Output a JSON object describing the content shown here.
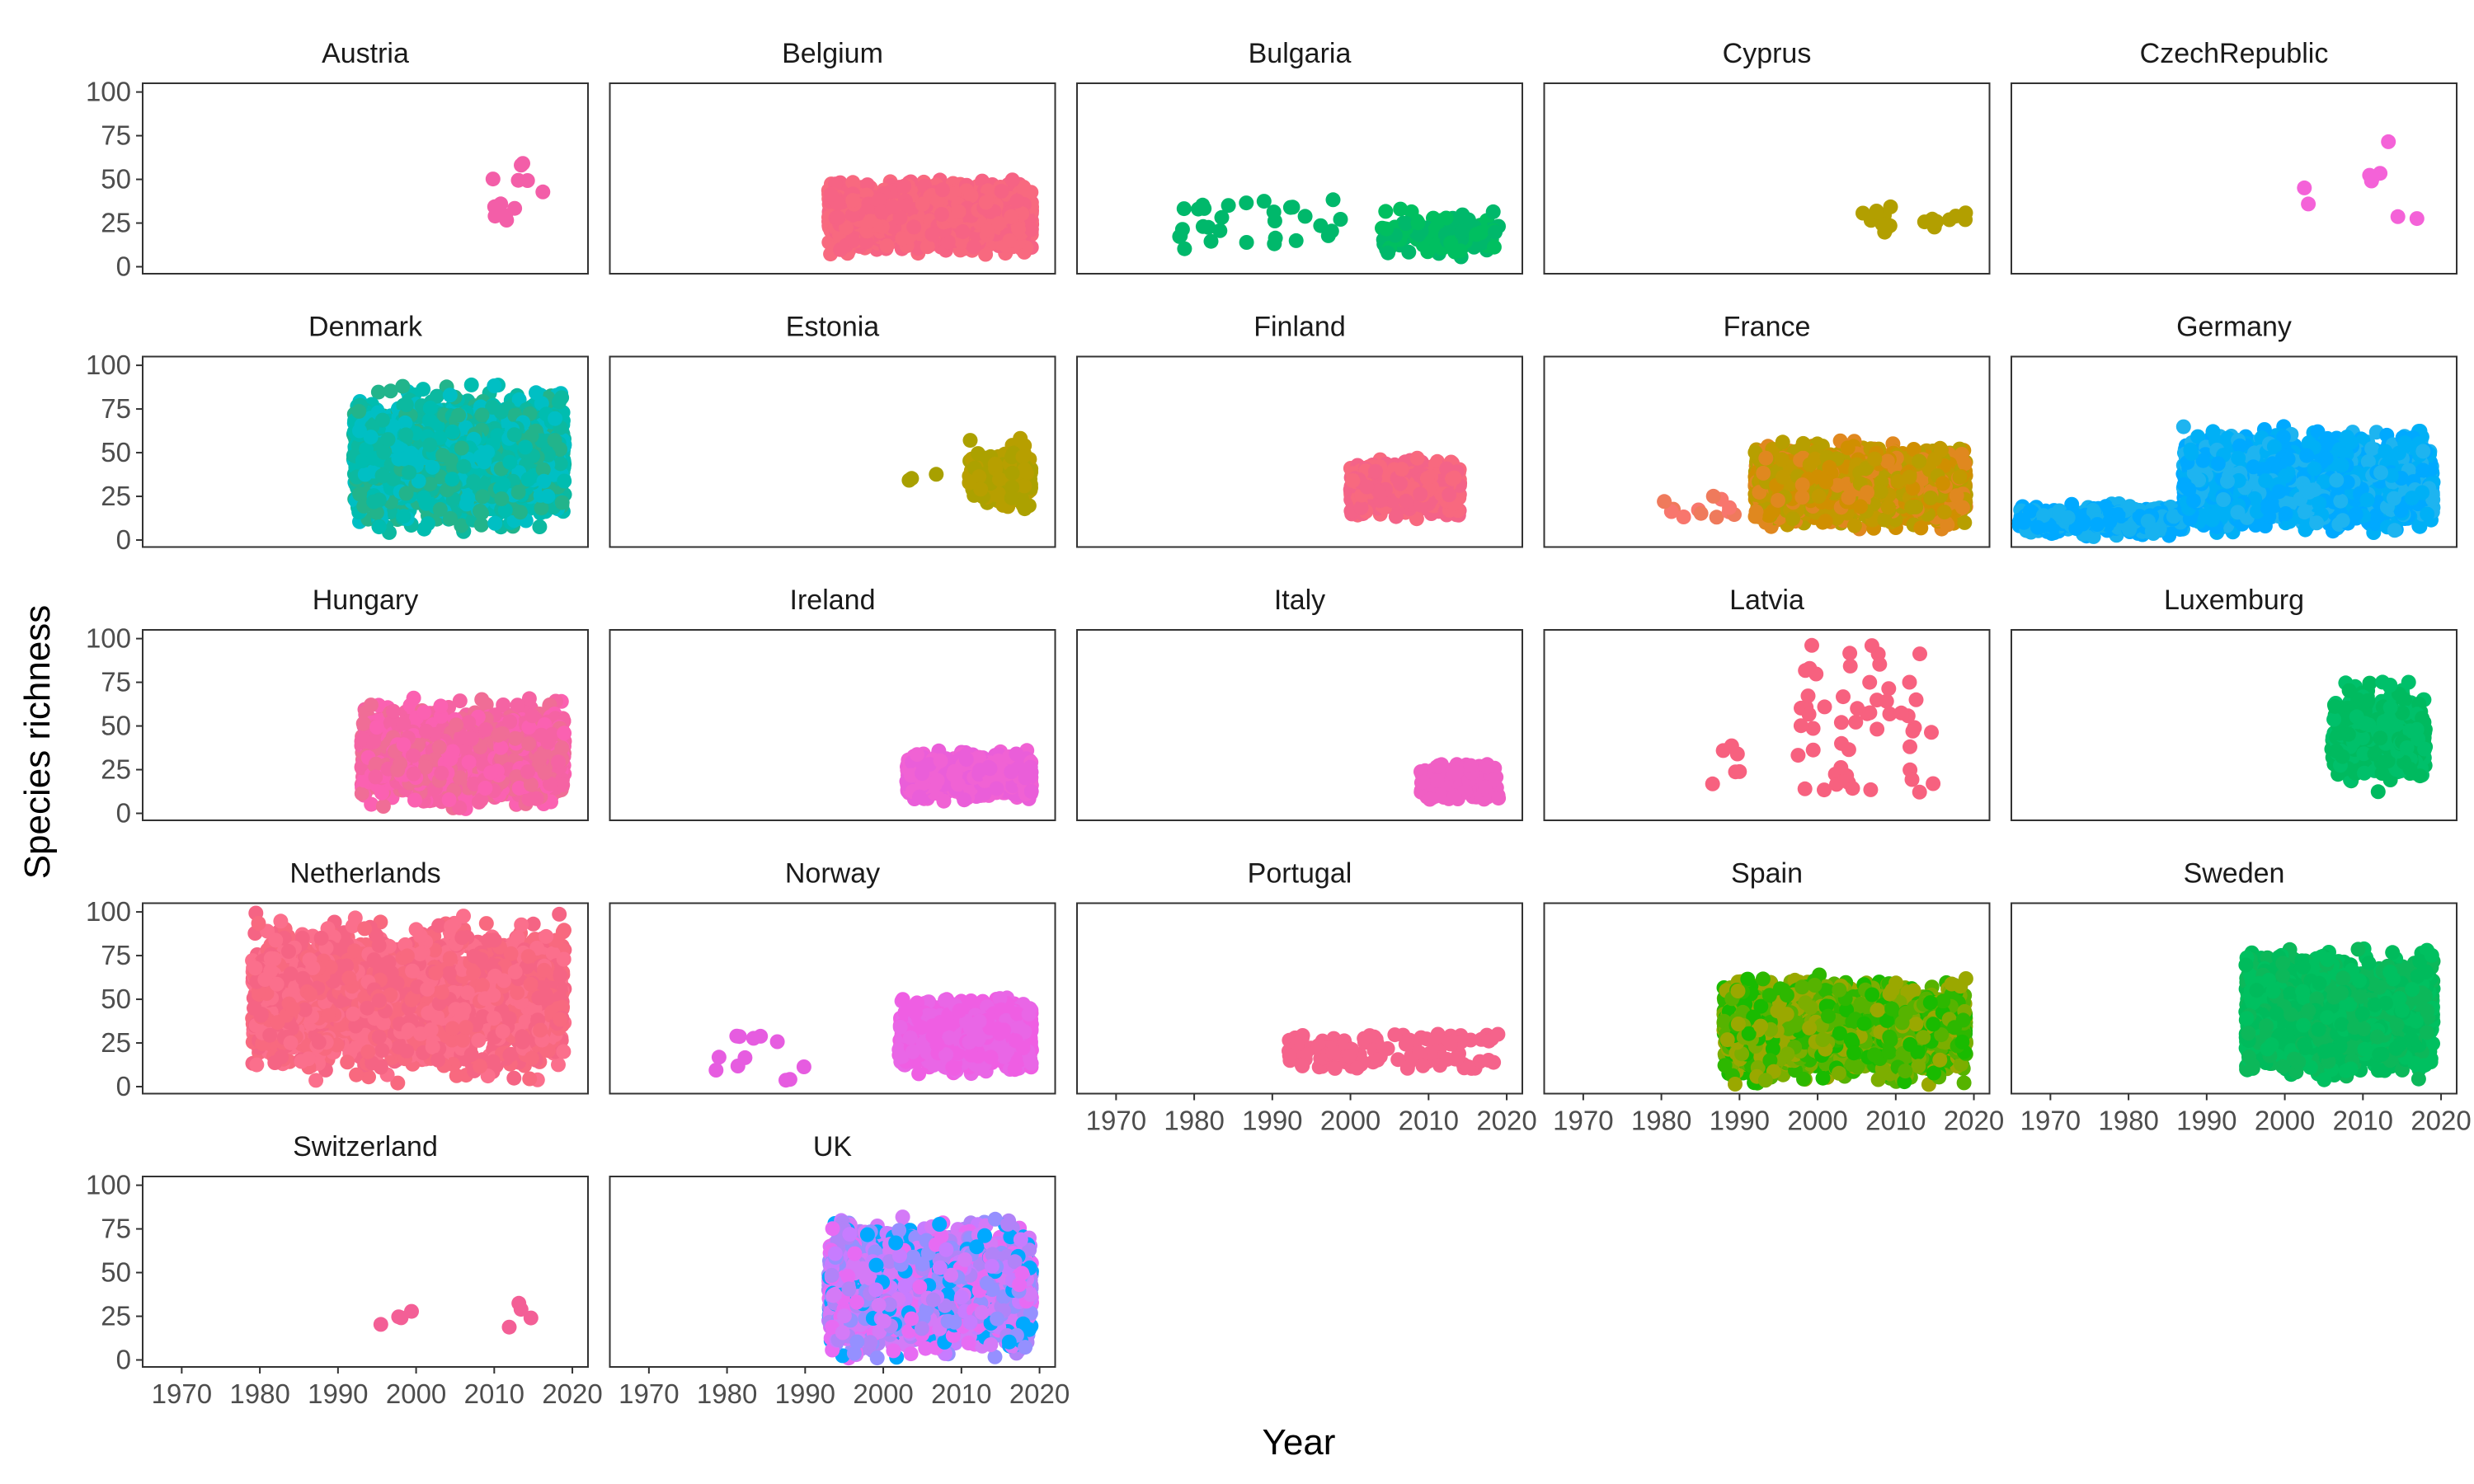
{
  "chart_data": {
    "type": "scatter",
    "xlabel": "Year",
    "ylabel": "Species richness",
    "xlim": [
      1965,
      2022
    ],
    "ylim": [
      -4,
      105
    ],
    "x_ticks": [
      "1970",
      "1980",
      "1990",
      "2000",
      "2010",
      "2020"
    ],
    "y_ticks": [
      "0",
      "25",
      "50",
      "75",
      "100"
    ],
    "grid": false,
    "panels": [
      {
        "name": "Austria",
        "clusters": [
          {
            "x": [
              2008.5,
              2017.5
            ],
            "y": [
              25,
              60
            ],
            "n": 12,
            "colors": [
              "#f35ea8"
            ]
          }
        ]
      },
      {
        "name": "Belgium",
        "clusters": [
          {
            "x": [
              1993,
              2019
            ],
            "y": [
              7,
              50
            ],
            "n": 2400,
            "colors": [
              "#f8697f",
              "#f66384"
            ]
          }
        ]
      },
      {
        "name": "Bulgaria",
        "clusters": [
          {
            "x": [
              1978,
              1999
            ],
            "y": [
              10,
              40
            ],
            "n": 30,
            "colors": [
              "#00b86b"
            ]
          },
          {
            "x": [
              2004,
              2019
            ],
            "y": [
              3,
              34
            ],
            "n": 160,
            "colors": [
              "#00b86b",
              "#00bf60"
            ]
          }
        ]
      },
      {
        "name": "Cyprus",
        "clusters": [
          {
            "x": [
              2005,
              2011
            ],
            "y": [
              18,
              37
            ],
            "n": 10,
            "colors": [
              "#b29f00"
            ]
          },
          {
            "x": [
              2013,
              2019
            ],
            "y": [
              19,
              31
            ],
            "n": 8,
            "colors": [
              "#b29f00"
            ]
          }
        ]
      },
      {
        "name": "CzechRepublic",
        "clusters": [
          {
            "x": [
              2002,
              2017
            ],
            "y": [
              27,
              76
            ],
            "n": 9,
            "colors": [
              "#f462d8"
            ]
          }
        ]
      },
      {
        "name": "Denmark",
        "clusters": [
          {
            "x": [
              1992,
              2019
            ],
            "y": [
              3,
              89
            ],
            "n": 2600,
            "colors": [
              "#00bfc4",
              "#00bdb0",
              "#0cb9a0",
              "#22b48b"
            ]
          }
        ]
      },
      {
        "name": "Estonia",
        "clusters": [
          {
            "x": [
              2003,
              2007
            ],
            "y": [
              30,
              38
            ],
            "n": 3,
            "colors": [
              "#a8a000"
            ]
          },
          {
            "x": [
              2011,
              2019
            ],
            "y": [
              14,
              60
            ],
            "n": 170,
            "colors": [
              "#aca100",
              "#b79f00"
            ]
          }
        ]
      },
      {
        "name": "Finland",
        "clusters": [
          {
            "x": [
              2000,
              2014
            ],
            "y": [
              12,
              48
            ],
            "n": 700,
            "colors": [
              "#f8697f",
              "#f46388"
            ]
          }
        ]
      },
      {
        "name": "France",
        "clusters": [
          {
            "x": [
              1979,
              1991
            ],
            "y": [
              13,
              26
            ],
            "n": 12,
            "colors": [
              "#f8766d",
              "#ef7a5c"
            ]
          },
          {
            "x": [
              1992,
              2019
            ],
            "y": [
              5,
              57
            ],
            "n": 2600,
            "colors": [
              "#d08f00",
              "#b79f00",
              "#e0881f",
              "#c29a00"
            ]
          }
        ]
      },
      {
        "name": "Germany",
        "clusters": [
          {
            "x": [
              1966,
              1987
            ],
            "y": [
              1,
              22
            ],
            "n": 500,
            "colors": [
              "#00a9ff",
              "#17b2f0"
            ]
          },
          {
            "x": [
              1987,
              2019
            ],
            "y": [
              2,
              65
            ],
            "n": 2200,
            "colors": [
              "#00a9ff",
              "#1eb4f0",
              "#00b0f6"
            ]
          }
        ]
      },
      {
        "name": "Hungary",
        "clusters": [
          {
            "x": [
              1993,
              2019
            ],
            "y": [
              2,
              66
            ],
            "n": 2200,
            "colors": [
              "#f563a3",
              "#fb61b1",
              "#f06d96"
            ]
          }
        ]
      },
      {
        "name": "Ireland",
        "clusters": [
          {
            "x": [
              2003,
              2019
            ],
            "y": [
              5,
              38
            ],
            "n": 900,
            "colors": [
              "#ea5ed9",
              "#f062d4"
            ]
          }
        ]
      },
      {
        "name": "Italy",
        "clusters": [
          {
            "x": [
              2009,
              2019
            ],
            "y": [
              8,
              28
            ],
            "n": 140,
            "colors": [
              "#f05fc4"
            ]
          }
        ]
      },
      {
        "name": "Latvia",
        "clusters": [
          {
            "x": [
              1986,
              1990
            ],
            "y": [
              13,
              41
            ],
            "n": 6,
            "colors": [
              "#f7617f"
            ]
          },
          {
            "x": [
              1997,
              2015
            ],
            "y": [
              12,
              98
            ],
            "n": 55,
            "colors": [
              "#f7617f"
            ]
          }
        ]
      },
      {
        "name": "Luxemburg",
        "clusters": [
          {
            "x": [
              2006,
              2018
            ],
            "y": [
              12,
              80
            ],
            "n": 420,
            "colors": [
              "#00ba5f",
              "#00c06a"
            ]
          }
        ]
      },
      {
        "name": "Netherlands",
        "clusters": [
          {
            "x": [
              1979,
              2019
            ],
            "y": [
              2,
              100
            ],
            "n": 2600,
            "colors": [
              "#f8697f",
              "#f56484",
              "#fb6f8c"
            ]
          }
        ]
      },
      {
        "name": "Norway",
        "clusters": [
          {
            "x": [
              1978,
              1990
            ],
            "y": [
              2,
              29
            ],
            "n": 12,
            "colors": [
              "#e65ce0"
            ]
          },
          {
            "x": [
              2002,
              2019
            ],
            "y": [
              7,
              52
            ],
            "n": 1400,
            "colors": [
              "#ef5ee3",
              "#e966e6"
            ]
          }
        ]
      },
      {
        "name": "Portugal",
        "clusters": [
          {
            "x": [
              1992,
              2019
            ],
            "y": [
              10,
              30
            ],
            "n": 110,
            "colors": [
              "#f5638b"
            ]
          }
        ]
      },
      {
        "name": "Spain",
        "clusters": [
          {
            "x": [
              1988,
              2019
            ],
            "y": [
              1,
              64
            ],
            "n": 3000,
            "colors": [
              "#7cae00",
              "#56b300",
              "#2db800",
              "#9aa800",
              "#19bb00"
            ]
          }
        ]
      },
      {
        "name": "Sweden",
        "clusters": [
          {
            "x": [
              1995,
              2019
            ],
            "y": [
              3,
              80
            ],
            "n": 2400,
            "colors": [
              "#00bb5c",
              "#00c060",
              "#0cb85a"
            ]
          }
        ]
      },
      {
        "name": "Switzerland",
        "clusters": [
          {
            "x": [
              1995,
              2018
            ],
            "y": [
              11,
              33
            ],
            "n": 8,
            "colors": [
              "#f35f96"
            ]
          }
        ]
      },
      {
        "name": "UK",
        "clusters": [
          {
            "x": [
              1993,
              2019
            ],
            "y": [
              1,
              82
            ],
            "n": 3200,
            "colors": [
              "#c77cff",
              "#e76bf3",
              "#00a9ff",
              "#b183f8",
              "#d47af7",
              "#9590ff"
            ]
          }
        ]
      }
    ]
  }
}
